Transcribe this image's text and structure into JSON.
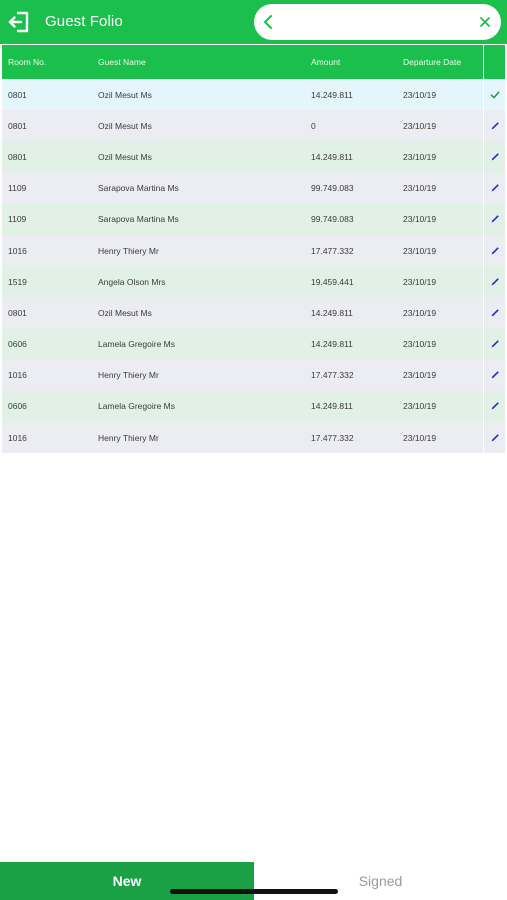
{
  "header": {
    "title": "Guest Folio",
    "search": {
      "value": "",
      "placeholder": ""
    }
  },
  "table": {
    "columns": [
      "Room No.",
      "Guest Name",
      "Amount",
      "Departure Date"
    ],
    "rows": [
      {
        "room": "0801",
        "name": "Ozil Mesut Ms",
        "amount": "14.249.811",
        "departure": "23/10/19",
        "status_icon": "check-icon"
      },
      {
        "room": "0801",
        "name": "Ozil Mesut Ms",
        "amount": "0",
        "departure": "23/10/19",
        "status_icon": "pen-icon"
      },
      {
        "room": "0801",
        "name": "Ozil Mesut Ms",
        "amount": "14.249.811",
        "departure": "23/10/19",
        "status_icon": "pen-icon"
      },
      {
        "room": "1109",
        "name": "Sarapova Martina Ms",
        "amount": "99.749.083",
        "departure": "23/10/19",
        "status_icon": "pen-icon"
      },
      {
        "room": "1109",
        "name": "Sarapova Martina Ms",
        "amount": "99.749.083",
        "departure": "23/10/19",
        "status_icon": "pen-icon"
      },
      {
        "room": "1016",
        "name": "Henry Thiery Mr",
        "amount": "17.477.332",
        "departure": "23/10/19",
        "status_icon": "pen-icon"
      },
      {
        "room": "1519",
        "name": "Angela Olson Mrs",
        "amount": "19.459.441",
        "departure": "23/10/19",
        "status_icon": "pen-icon"
      },
      {
        "room": "0801",
        "name": "Ozil Mesut Ms",
        "amount": "14.249.811",
        "departure": "23/10/19",
        "status_icon": "pen-icon"
      },
      {
        "room": "0606",
        "name": "Lamela Gregoire Ms",
        "amount": "14.249.811",
        "departure": "23/10/19",
        "status_icon": "pen-icon"
      },
      {
        "room": "1016",
        "name": "Henry Thiery Mr",
        "amount": "17.477.332",
        "departure": "23/10/19",
        "status_icon": "pen-icon"
      },
      {
        "room": "0606",
        "name": "Lamela Gregoire Ms",
        "amount": "14.249.811",
        "departure": "23/10/19",
        "status_icon": "pen-icon"
      },
      {
        "room": "1016",
        "name": "Henry Thiery Mr",
        "amount": "17.477.332",
        "departure": "23/10/19",
        "status_icon": "pen-icon"
      }
    ]
  },
  "tabs": {
    "new_label": "New",
    "signed_label": "Signed",
    "active": "New"
  },
  "colors": {
    "header_green": "#1bbf4b",
    "tab_green": "#1aa045",
    "check_green": "#1aa045",
    "pen_blue": "#2b2fc9"
  }
}
